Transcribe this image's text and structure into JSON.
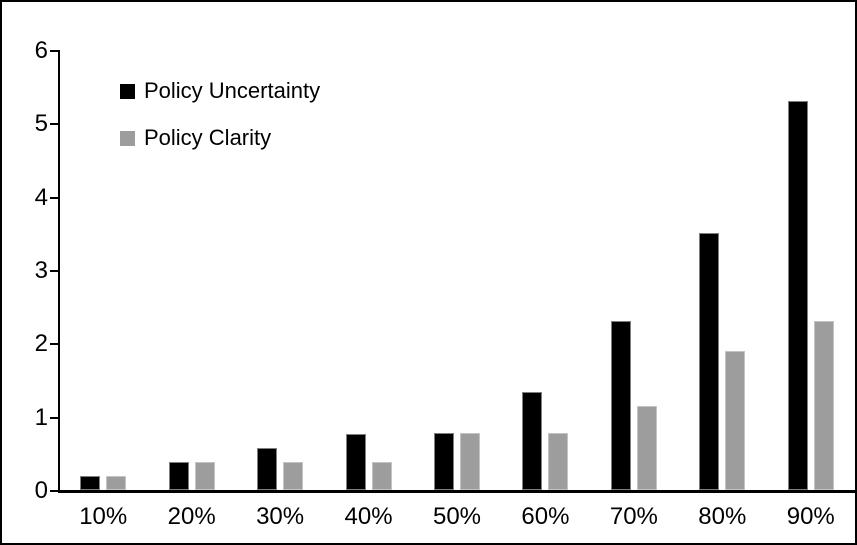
{
  "figure": {
    "background": "#ffffff",
    "frame_color": "#000000"
  },
  "chart_data": {
    "type": "bar",
    "title": "",
    "xlabel": "",
    "ylabel": "",
    "categories": [
      "10%",
      "20%",
      "30%",
      "40%",
      "50%",
      "60%",
      "70%",
      "80%",
      "90%"
    ],
    "series": [
      {
        "name": "Policy Uncertainty",
        "color": "#000000",
        "values": [
          0.19,
          0.38,
          0.57,
          0.76,
          0.78,
          1.33,
          2.31,
          3.5,
          5.3
        ]
      },
      {
        "name": "Policy Clarity",
        "color": "#9d9d9d",
        "values": [
          0.19,
          0.38,
          0.38,
          0.38,
          0.78,
          0.78,
          1.15,
          1.9,
          2.31
        ]
      }
    ],
    "ylim": [
      0,
      6
    ],
    "yticks": [
      0,
      1,
      2,
      3,
      4,
      5,
      6
    ],
    "grid": false,
    "legend_position": "top-left-inside"
  }
}
